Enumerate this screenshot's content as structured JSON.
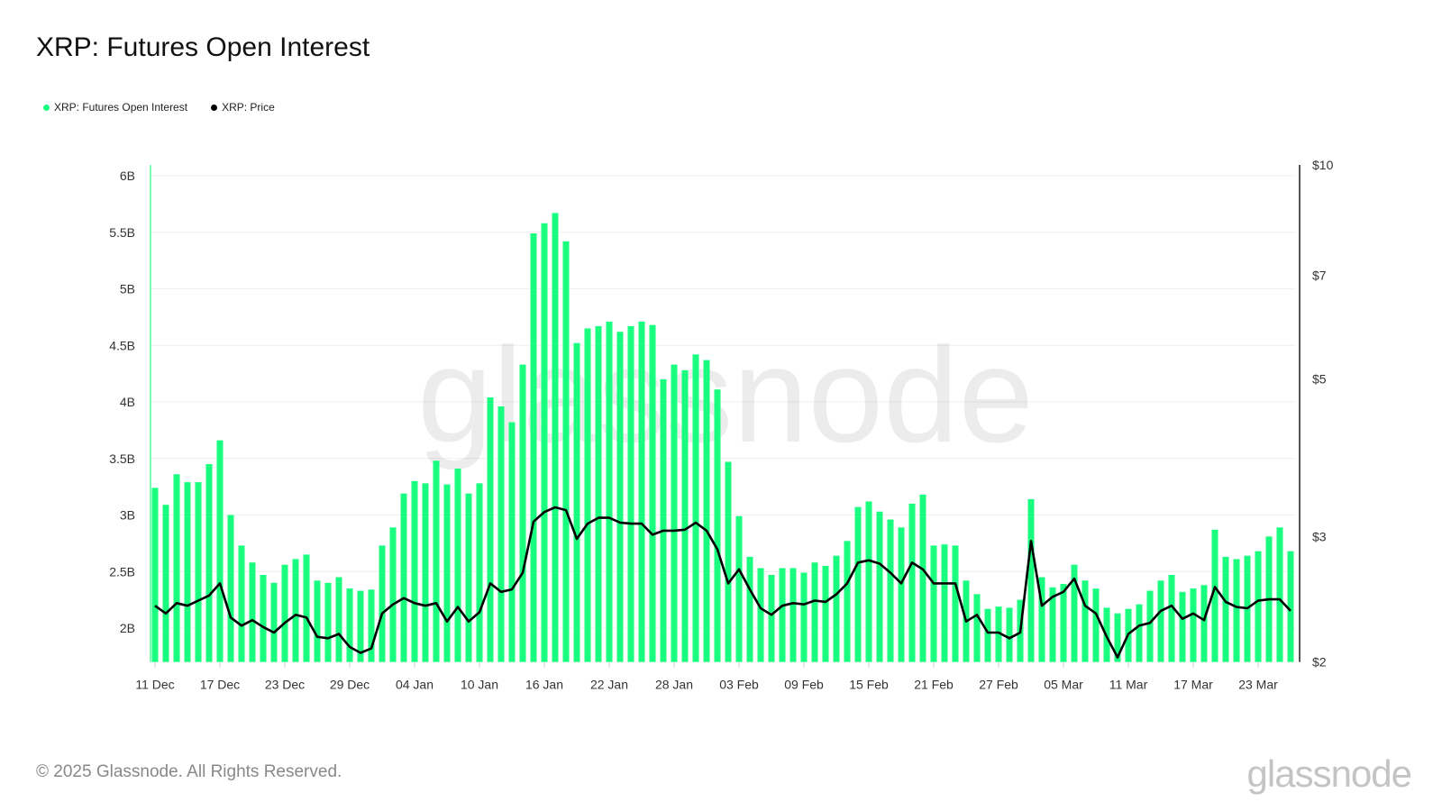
{
  "title": "XRP: Futures Open Interest",
  "watermark": "glassnode",
  "footer": "© 2025 Glassnode. All Rights Reserved.",
  "logo": "glassnode",
  "colors": {
    "open_interest": "#19ff7f",
    "price": "#000000",
    "left_axis": "#7dfcb4",
    "right_axis": "#555555",
    "grid": "#efefef"
  },
  "chart_data": {
    "type": "bar",
    "title": "XRP: Futures Open Interest",
    "legend_placement": "top-left",
    "grid": true,
    "left_axis": {
      "ticks": [
        "2B",
        "2.5B",
        "3B",
        "3.5B",
        "4B",
        "4.5B",
        "5B",
        "5.5B",
        "6B"
      ],
      "tick_values": [
        2,
        2.5,
        3,
        3.5,
        4,
        4.5,
        5,
        5.5,
        6
      ],
      "range": [
        1.7,
        6.05
      ],
      "unit": "B"
    },
    "right_axis": {
      "scale": "log",
      "ticks": [
        "$2",
        "$3",
        "$5",
        "$7",
        "$10"
      ],
      "tick_values": [
        2,
        3,
        5,
        7,
        10
      ],
      "range": [
        2,
        10
      ]
    },
    "x_ticks": [
      "11 Dec",
      "17 Dec",
      "23 Dec",
      "29 Dec",
      "04 Jan",
      "10 Jan",
      "16 Jan",
      "22 Jan",
      "28 Jan",
      "03 Feb",
      "09 Feb",
      "15 Feb",
      "21 Feb",
      "27 Feb",
      "05 Mar",
      "11 Mar",
      "17 Mar",
      "23 Mar"
    ],
    "x": [
      "11 Dec",
      "12 Dec",
      "13 Dec",
      "14 Dec",
      "15 Dec",
      "16 Dec",
      "17 Dec",
      "18 Dec",
      "19 Dec",
      "20 Dec",
      "21 Dec",
      "22 Dec",
      "23 Dec",
      "24 Dec",
      "25 Dec",
      "26 Dec",
      "27 Dec",
      "28 Dec",
      "29 Dec",
      "30 Dec",
      "31 Dec",
      "01 Jan",
      "02 Jan",
      "03 Jan",
      "04 Jan",
      "05 Jan",
      "06 Jan",
      "07 Jan",
      "08 Jan",
      "09 Jan",
      "10 Jan",
      "11 Jan",
      "12 Jan",
      "13 Jan",
      "14 Jan",
      "15 Jan",
      "16 Jan",
      "17 Jan",
      "18 Jan",
      "19 Jan",
      "20 Jan",
      "21 Jan",
      "22 Jan",
      "23 Jan",
      "24 Jan",
      "25 Jan",
      "26 Jan",
      "27 Jan",
      "28 Jan",
      "29 Jan",
      "30 Jan",
      "31 Jan",
      "01 Feb",
      "02 Feb",
      "03 Feb",
      "04 Feb",
      "05 Feb",
      "06 Feb",
      "07 Feb",
      "08 Feb",
      "09 Feb",
      "10 Feb",
      "11 Feb",
      "12 Feb",
      "13 Feb",
      "14 Feb",
      "15 Feb",
      "16 Feb",
      "17 Feb",
      "18 Feb",
      "19 Feb",
      "20 Feb",
      "21 Feb",
      "22 Feb",
      "23 Feb",
      "24 Feb",
      "25 Feb",
      "26 Feb",
      "27 Feb",
      "28 Feb",
      "01 Mar",
      "02 Mar",
      "03 Mar",
      "04 Mar",
      "05 Mar",
      "06 Mar",
      "07 Mar",
      "08 Mar",
      "09 Mar",
      "10 Mar",
      "11 Mar",
      "12 Mar",
      "13 Mar",
      "14 Mar",
      "15 Mar",
      "16 Mar",
      "17 Mar",
      "18 Mar",
      "19 Mar",
      "20 Mar",
      "21 Mar",
      "22 Mar",
      "23 Mar",
      "24 Mar",
      "25 Mar",
      "26 Mar"
    ],
    "series": [
      {
        "name": "XRP: Futures Open Interest",
        "axis": "left",
        "type": "bar",
        "unit": "B USD",
        "values": [
          3.24,
          3.09,
          3.36,
          3.29,
          3.29,
          3.45,
          3.66,
          3.0,
          2.73,
          2.58,
          2.47,
          2.4,
          2.56,
          2.61,
          2.65,
          2.42,
          2.4,
          2.45,
          2.35,
          2.33,
          2.34,
          2.73,
          2.89,
          3.19,
          3.3,
          3.28,
          3.48,
          3.27,
          3.41,
          3.19,
          3.28,
          4.04,
          3.96,
          3.82,
          4.33,
          5.49,
          5.58,
          5.67,
          5.42,
          4.52,
          4.65,
          4.67,
          4.71,
          4.62,
          4.67,
          4.71,
          4.68,
          4.2,
          4.33,
          4.28,
          4.42,
          4.37,
          4.11,
          3.47,
          2.99,
          2.63,
          2.53,
          2.47,
          2.53,
          2.53,
          2.49,
          2.58,
          2.55,
          2.64,
          2.77,
          3.07,
          3.12,
          3.03,
          2.96,
          2.89,
          3.1,
          3.18,
          2.73,
          2.74,
          2.73,
          2.42,
          2.3,
          2.17,
          2.19,
          2.18,
          2.25,
          3.14,
          2.45,
          2.36,
          2.39,
          2.56,
          2.42,
          2.35,
          2.18,
          2.13,
          2.17,
          2.21,
          2.33,
          2.42,
          2.47,
          2.32,
          2.35,
          2.38,
          2.87,
          2.63,
          2.61,
          2.64,
          2.68,
          2.81,
          2.89,
          2.68
        ]
      },
      {
        "name": "XRP: Price",
        "axis": "right",
        "type": "line",
        "unit": "USD",
        "values": [
          2.4,
          2.34,
          2.42,
          2.4,
          2.44,
          2.48,
          2.58,
          2.31,
          2.25,
          2.29,
          2.24,
          2.2,
          2.27,
          2.33,
          2.31,
          2.17,
          2.16,
          2.19,
          2.1,
          2.06,
          2.09,
          2.34,
          2.41,
          2.46,
          2.42,
          2.4,
          2.42,
          2.28,
          2.39,
          2.28,
          2.35,
          2.58,
          2.51,
          2.53,
          2.67,
          3.15,
          3.25,
          3.3,
          3.27,
          2.98,
          3.13,
          3.19,
          3.19,
          3.14,
          3.13,
          3.13,
          3.02,
          3.06,
          3.06,
          3.07,
          3.14,
          3.06,
          2.88,
          2.58,
          2.7,
          2.53,
          2.38,
          2.33,
          2.4,
          2.42,
          2.41,
          2.44,
          2.43,
          2.49,
          2.58,
          2.76,
          2.78,
          2.75,
          2.67,
          2.58,
          2.76,
          2.7,
          2.58,
          2.58,
          2.58,
          2.28,
          2.33,
          2.2,
          2.2,
          2.16,
          2.2,
          2.96,
          2.4,
          2.47,
          2.51,
          2.62,
          2.4,
          2.34,
          2.17,
          2.03,
          2.19,
          2.25,
          2.27,
          2.36,
          2.4,
          2.3,
          2.34,
          2.29,
          2.55,
          2.43,
          2.39,
          2.38,
          2.44,
          2.45,
          2.45,
          2.36
        ]
      }
    ]
  }
}
